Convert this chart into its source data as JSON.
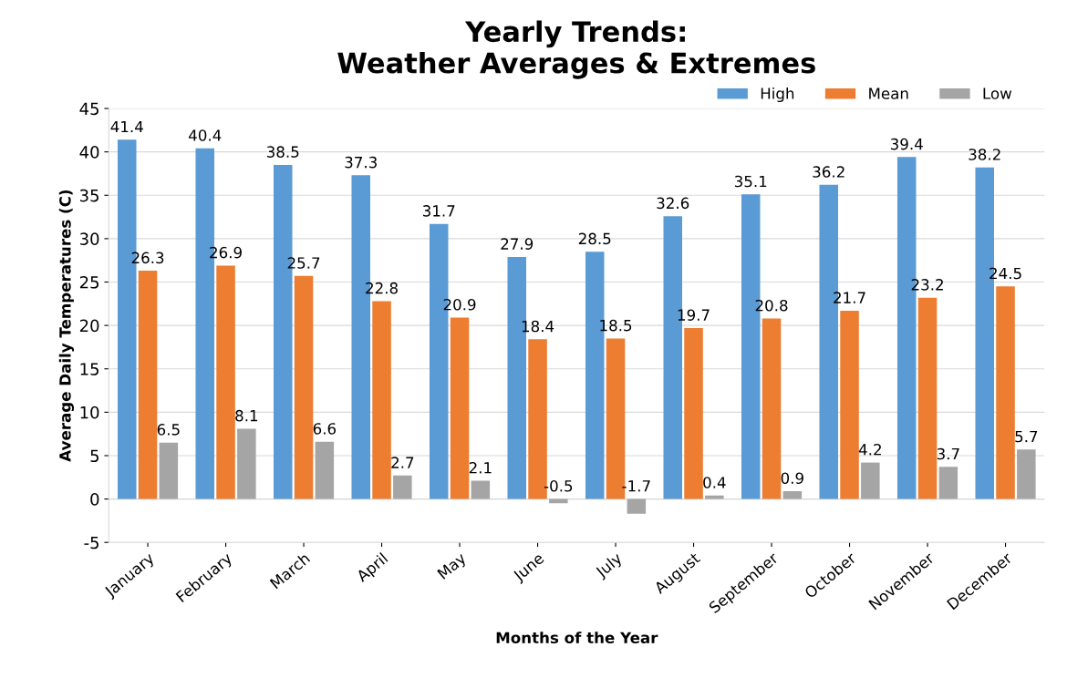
{
  "chart_data": {
    "type": "bar",
    "title": "Yearly Trends:\nWeather Averages & Extremes",
    "xlabel": "Months of the Year",
    "ylabel": "Average Daily Temperatures (C)",
    "categories": [
      "January",
      "February",
      "March",
      "April",
      "May",
      "June",
      "July",
      "August",
      "September",
      "October",
      "November",
      "December"
    ],
    "series": [
      {
        "name": "High",
        "color": "#5b9bd5",
        "values": [
          41.4,
          40.4,
          38.5,
          37.3,
          31.7,
          27.9,
          28.5,
          32.6,
          35.1,
          36.2,
          39.4,
          38.2
        ]
      },
      {
        "name": "Mean",
        "color": "#ed7d31",
        "values": [
          26.3,
          26.9,
          25.7,
          22.8,
          20.9,
          18.4,
          18.5,
          19.7,
          20.8,
          21.7,
          23.2,
          24.5
        ]
      },
      {
        "name": "Low",
        "color": "#a5a5a5",
        "values": [
          6.5,
          8.1,
          6.6,
          2.7,
          2.1,
          -0.5,
          -1.7,
          0.4,
          0.9,
          4.2,
          3.7,
          5.7
        ]
      }
    ],
    "ylim": [
      -5,
      45
    ],
    "yticks": [
      -5,
      0,
      5,
      10,
      15,
      20,
      25,
      30,
      35,
      40,
      45
    ],
    "grid": "y",
    "legend": "top right",
    "data_labels": true
  }
}
